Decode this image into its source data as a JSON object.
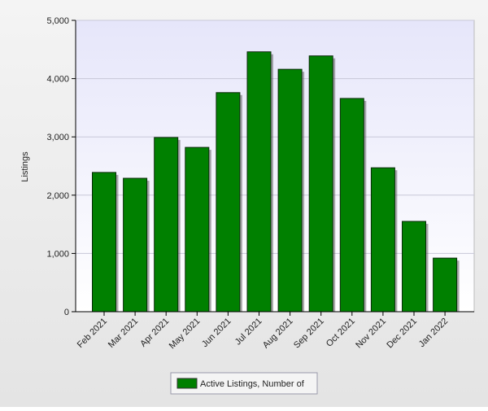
{
  "chart_data": {
    "type": "bar",
    "y_label": "Listings",
    "categories": [
      "Feb 2021",
      "Mar 2021",
      "Apr 2021",
      "May 2021",
      "Jun 2021",
      "Jul 2021",
      "Aug 2021",
      "Sep 2021",
      "Oct 2021",
      "Nov 2021",
      "Dec 2021",
      "Jan 2022"
    ],
    "series": [
      {
        "name": "Active Listings, Number of",
        "color": "#008000",
        "values": [
          2390,
          2290,
          2990,
          2820,
          3760,
          4460,
          4160,
          4390,
          3660,
          2470,
          1550,
          920
        ]
      }
    ],
    "ylim": [
      0,
      5000
    ],
    "yticks": [
      0,
      {
        "value": 1000,
        "label": "1,000"
      },
      {
        "value": 2000,
        "label": "2,000"
      },
      {
        "value": 3000,
        "label": "3,000"
      },
      {
        "value": 4000,
        "label": "4,000"
      },
      {
        "value": 5000,
        "label": "5,000"
      }
    ],
    "grid": true,
    "legend": "bottom"
  }
}
